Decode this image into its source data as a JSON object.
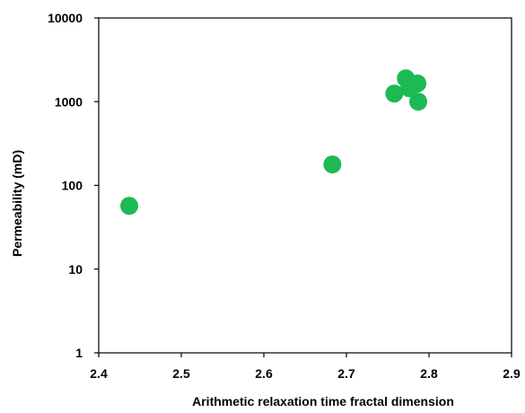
{
  "chart_data": {
    "type": "scatter",
    "title": "",
    "xlabel": "Arithmetic relaxation time fractal dimension",
    "ylabel": "Permeability (mD)",
    "xlim": [
      2.4,
      2.9
    ],
    "ylim": [
      1,
      10000
    ],
    "yscale": "log",
    "grid": false,
    "legend": "none",
    "marker_color": "#1db954",
    "x_ticks": [
      "2.4",
      "2.5",
      "2.6",
      "2.7",
      "2.8",
      "2.9"
    ],
    "y_ticks": [
      "1",
      "10",
      "100",
      "1000",
      "10000"
    ],
    "series": [
      {
        "points": [
          {
            "x": 2.437,
            "y": 57
          },
          {
            "x": 2.683,
            "y": 178
          },
          {
            "x": 2.758,
            "y": 1250
          },
          {
            "x": 2.772,
            "y": 1900
          },
          {
            "x": 2.776,
            "y": 1450
          },
          {
            "x": 2.786,
            "y": 1650
          },
          {
            "x": 2.787,
            "y": 1000
          }
        ]
      }
    ]
  }
}
